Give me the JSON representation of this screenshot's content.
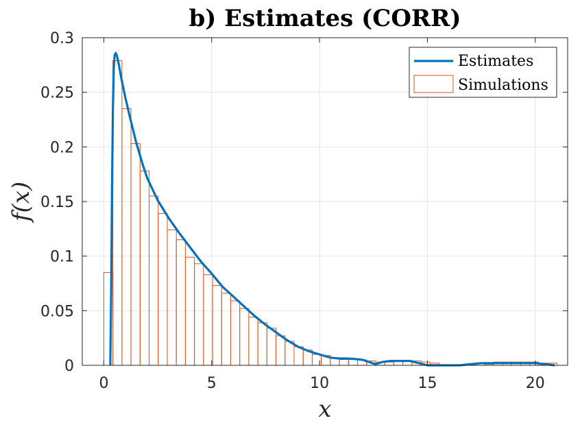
{
  "chart_data": {
    "type": "bar",
    "title": "b) Estimates (CORR)",
    "xlabel": "x",
    "ylabel": "f(x)",
    "xlim": [
      -1,
      21.5
    ],
    "ylim": [
      0,
      0.3
    ],
    "xticks": [
      0,
      5,
      10,
      15,
      20
    ],
    "xtick_labels": [
      "0",
      "5",
      "10",
      "15",
      "20"
    ],
    "yticks": [
      0,
      0.05,
      0.1,
      0.15,
      0.2,
      0.25,
      0.3
    ],
    "ytick_labels": [
      "0",
      "0.05",
      "0.1",
      "0.15",
      "0.2",
      "0.25",
      "0.3"
    ],
    "grid": true,
    "legend_position": "top-right",
    "colors": {
      "estimates": "#0072BD",
      "simulations": "#D95319",
      "axis": "#262626",
      "grid": "#e6e6e6"
    },
    "series": [
      {
        "name": "Estimates",
        "kind": "line",
        "x": [
          0.3,
          0.34,
          0.38,
          0.42,
          0.46,
          0.5,
          0.55,
          0.6,
          0.7,
          0.8,
          1.0,
          1.2,
          1.5,
          1.8,
          2.0,
          2.5,
          3.0,
          3.5,
          4.0,
          4.5,
          5.0,
          5.5,
          6.0,
          6.5,
          7.0,
          7.5,
          8.0,
          8.5,
          9.0,
          9.5,
          10.0,
          10.5,
          11.0,
          11.5,
          12.0,
          12.3,
          12.6,
          12.9,
          13.3,
          13.8,
          14.2,
          14.6,
          15.0,
          15.5,
          16.0,
          16.5,
          17.0,
          17.5,
          18.0,
          18.5,
          19.0,
          19.5,
          20.0,
          20.5,
          20.9
        ],
        "y": [
          0.0,
          0.07,
          0.16,
          0.235,
          0.272,
          0.284,
          0.286,
          0.284,
          0.275,
          0.264,
          0.245,
          0.228,
          0.204,
          0.184,
          0.172,
          0.151,
          0.135,
          0.121,
          0.108,
          0.095,
          0.084,
          0.072,
          0.063,
          0.054,
          0.045,
          0.037,
          0.03,
          0.023,
          0.017,
          0.013,
          0.01,
          0.007,
          0.006,
          0.006,
          0.005,
          0.003,
          0.001,
          0.003,
          0.004,
          0.004,
          0.004,
          0.002,
          0.0,
          0.0,
          0.0,
          0.0,
          0.001,
          0.002,
          0.002,
          0.002,
          0.002,
          0.002,
          0.002,
          0.001,
          0.0
        ]
      },
      {
        "name": "Simulations",
        "kind": "histogram",
        "bin_width": 0.42,
        "bin_start": 0.0,
        "values": [
          0.085,
          0.279,
          0.235,
          0.203,
          0.178,
          0.155,
          0.139,
          0.124,
          0.115,
          0.099,
          0.093,
          0.083,
          0.073,
          0.066,
          0.059,
          0.052,
          0.044,
          0.039,
          0.034,
          0.027,
          0.022,
          0.017,
          0.014,
          0.01,
          0.009,
          0.007,
          0.007,
          0.006,
          0.005,
          0.004,
          0.003,
          0.003,
          0.004,
          0.004,
          0.004,
          0.003,
          0.002,
          0.0,
          0.0,
          0.0,
          0.0,
          0.0,
          0.001,
          0.003,
          0.003,
          0.003,
          0.003,
          0.003,
          0.002,
          0.002
        ]
      }
    ]
  }
}
